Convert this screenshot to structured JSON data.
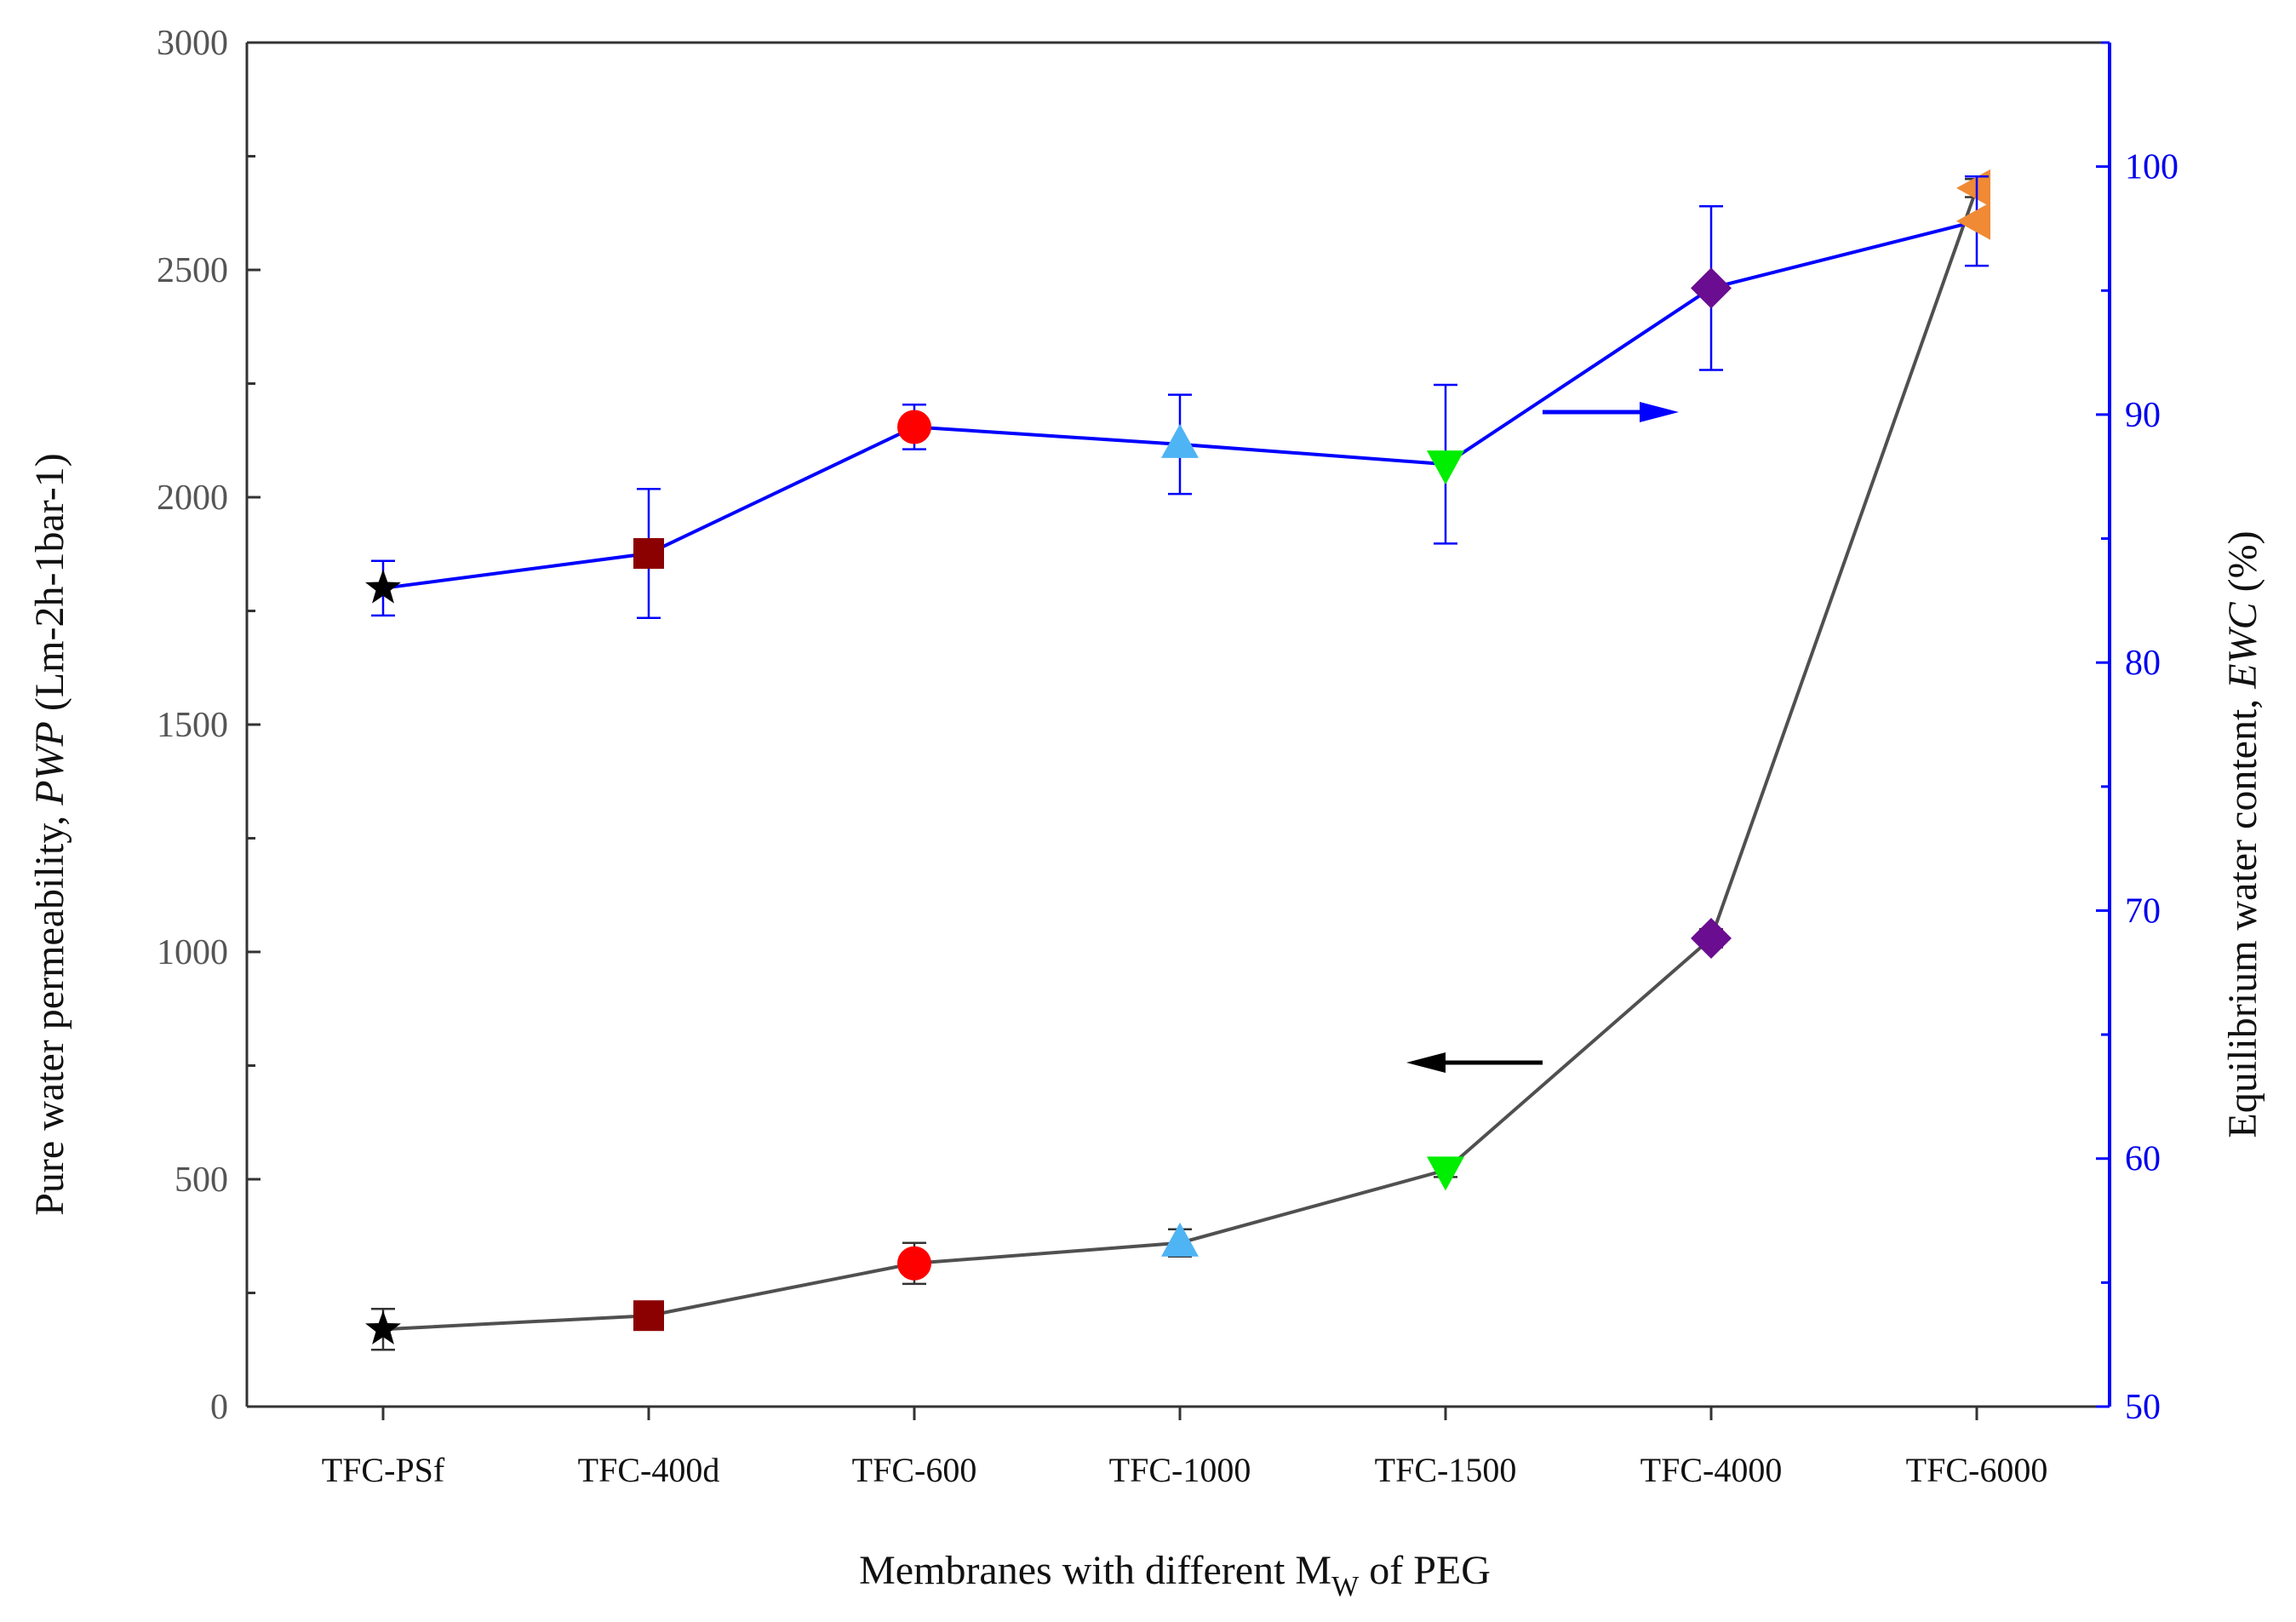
{
  "chart_data": {
    "type": "line",
    "title": "",
    "xlabel": "Membranes with different M",
    "xlabel_sub": "W",
    "xlabel_suffix": " of PEG",
    "ylabel_left": {
      "prefix": "Pure water permeability, ",
      "italic": "PWP",
      "suffix": " (Lm-2h-1bar-1)"
    },
    "ylabel_right": {
      "prefix": "Equilibrium water content, ",
      "italic": "EWC",
      "suffix": " (%)"
    },
    "categories": [
      "TFC-PSf",
      "TFC-400d",
      "TFC-600",
      "TFC-1000",
      "TFC-1500",
      "TFC-4000",
      "TFC-6000"
    ],
    "ylim_left": [
      0,
      3000
    ],
    "yticks_left": [
      0,
      500,
      1000,
      1500,
      2000,
      2500,
      3000
    ],
    "ylim_right": [
      50,
      105
    ],
    "yticks_right": [
      50,
      60,
      70,
      80,
      90,
      100
    ],
    "markers": [
      "star",
      "square",
      "circle",
      "triangle-up",
      "triangle-down",
      "diamond",
      "triangle-left"
    ],
    "marker_colors": [
      "#000000",
      "#8b0000",
      "#ff0000",
      "#4fb4f4",
      "#00ee00",
      "#6a0d91",
      "#f08a35"
    ],
    "series": [
      {
        "name": "PWP",
        "axis": "left",
        "line_color": "#505050",
        "values": [
          170,
          200,
          315,
          360,
          520,
          1030,
          2680
        ],
        "errors": [
          45,
          15,
          45,
          30,
          15,
          20,
          20
        ]
      },
      {
        "name": "EWC",
        "axis": "right",
        "line_color": "#0000ff",
        "errorbar_color": "#0000ff",
        "values": [
          83.0,
          84.4,
          89.5,
          88.8,
          88.0,
          95.1,
          97.8
        ],
        "errors": [
          1.1,
          2.6,
          0.9,
          2.0,
          3.2,
          3.3,
          1.8
        ]
      }
    ],
    "annotations": [
      {
        "type": "arrow",
        "direction": "left",
        "color": "#000000",
        "meaning": "PWP uses left axis"
      },
      {
        "type": "arrow",
        "direction": "right",
        "color": "#0000ff",
        "meaning": "EWC uses right axis"
      }
    ]
  }
}
